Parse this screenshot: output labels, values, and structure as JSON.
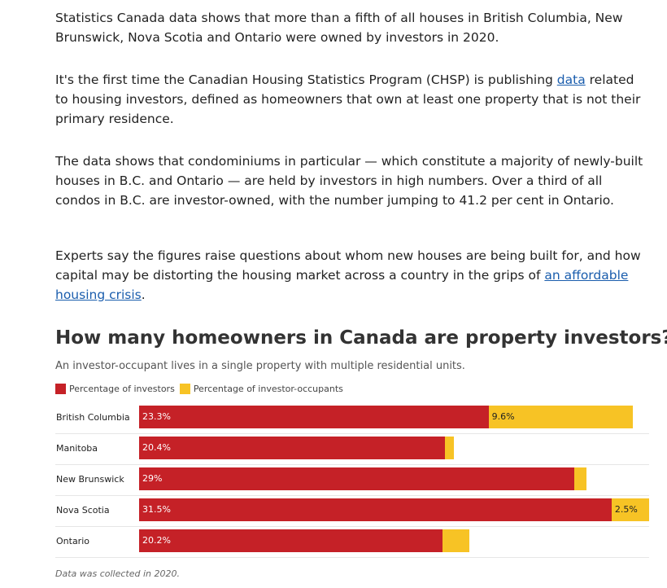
{
  "paragraphs": {
    "p1": "Statistics Canada data shows that more than a fifth of all houses in British Columbia, New Brunswick, Nova Scotia and Ontario were owned by investors in 2020.",
    "p2_before": "It's the first time the Canadian Housing Statistics Program (CHSP) is publishing ",
    "p2_link": "data",
    "p2_after": " related to housing investors, defined as homeowners that own at least one property that is not their primary residence.",
    "p3": "The data shows that condominiums in particular — which constitute a majority of newly-built houses in B.C. and Ontario — are held by investors in high numbers. Over a third of all condos in B.C. are investor-owned, with the number jumping to 41.2 per cent in Ontario.",
    "p4_before": "Experts say the figures raise questions about whom new houses are being built for, and how capital may be distorting the housing market across a country in the grips of ",
    "p4_link": "an affordable housing crisis",
    "p4_after": "."
  },
  "chart_data": {
    "type": "bar",
    "orientation": "horizontal",
    "stacked": true,
    "title": "How many homeowners in Canada are property investors?",
    "subtitle": "An investor-occupant lives in a single property with multiple residential units.",
    "categories": [
      "British Columbia",
      "Manitoba",
      "New Brunswick",
      "Nova Scotia",
      "Ontario"
    ],
    "series": [
      {
        "name": "Percentage of investors",
        "color": "#c52127",
        "values": [
          23.3,
          20.4,
          29,
          31.5,
          20.2
        ],
        "labels": [
          "23.3%",
          "20.4%",
          "29%",
          "31.5%",
          "20.2%"
        ]
      },
      {
        "name": "Percentage of investor-occupants",
        "color": "#f7c325",
        "values": [
          9.6,
          0.6,
          0.8,
          2.5,
          1.8
        ],
        "labels": [
          "9.6%",
          "",
          "",
          "2.5%",
          ""
        ]
      }
    ],
    "xlim": [
      0,
      34
    ],
    "legend_position": "top-left",
    "grid": false,
    "footnote": "Data was collected in 2020."
  },
  "colors": {
    "link": "#1a5dad",
    "investors": "#c52127",
    "investor_occupants": "#f7c325"
  }
}
